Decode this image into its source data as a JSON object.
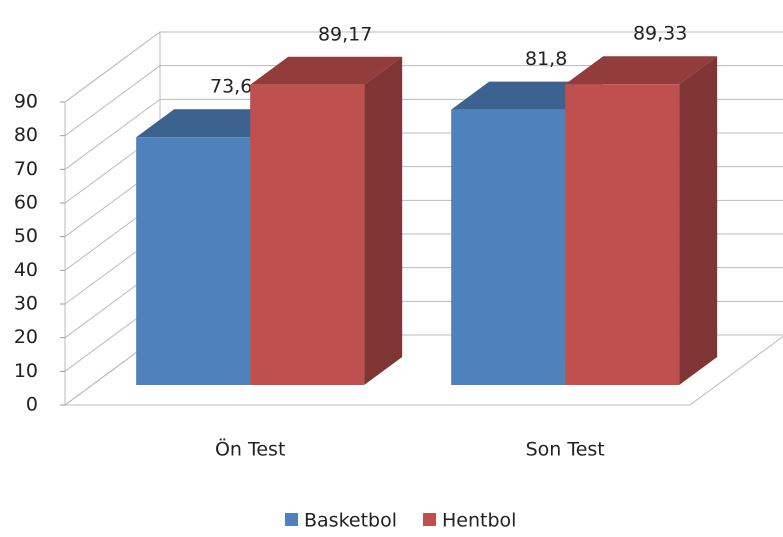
{
  "chart_data": {
    "type": "bar3d",
    "categories": [
      "Ön Test",
      "Son Test"
    ],
    "series": [
      {
        "name": "Basketbol",
        "color": "#4f81bd",
        "values": [
          73.6,
          81.8
        ],
        "value_labels": [
          "73,6",
          "81,8"
        ]
      },
      {
        "name": "Hentbol",
        "color": "#c0504d",
        "values": [
          89.17,
          89.33
        ],
        "value_labels": [
          "89,17",
          "89,33"
        ]
      }
    ],
    "ylim": [
      0,
      90
    ],
    "yticks": [
      0,
      10,
      20,
      30,
      40,
      50,
      60,
      70,
      80,
      90
    ],
    "grid": true,
    "legend": "bottom"
  }
}
